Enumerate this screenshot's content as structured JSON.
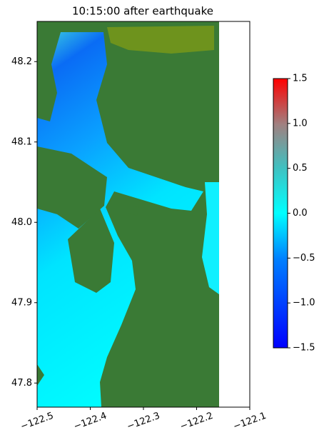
{
  "chart_data": {
    "type": "heatmap",
    "title": "10:15:00 after earthquake",
    "xlim": [
      -122.5,
      -122.1
    ],
    "xticks": [
      {
        "value": -122.5,
        "label": "−122.5"
      },
      {
        "value": -122.4,
        "label": "−122.4"
      },
      {
        "value": -122.3,
        "label": "−122.3"
      },
      {
        "value": -122.2,
        "label": "−122.2"
      },
      {
        "value": -122.1,
        "label": "−122.1"
      }
    ],
    "ylim": [
      47.77,
      48.25
    ],
    "yticks": [
      47.8,
      47.9,
      {
        "value": 48,
        "label": "48.0"
      },
      48.1,
      48.2
    ],
    "colorbar": {
      "clim": [
        -1.5,
        1.5
      ],
      "ticks": [
        {
          "value": -1.5,
          "label": "−1.5"
        },
        {
          "value": -1,
          "label": "−1.0"
        },
        {
          "value": -0.5,
          "label": "−0.5"
        },
        {
          "value": 0,
          "label": "0.0"
        },
        {
          "value": 0.5,
          "label": "0.5"
        },
        {
          "value": 1,
          "label": "1.0"
        },
        {
          "value": 1.5,
          "label": "1.5"
        }
      ]
    }
  }
}
